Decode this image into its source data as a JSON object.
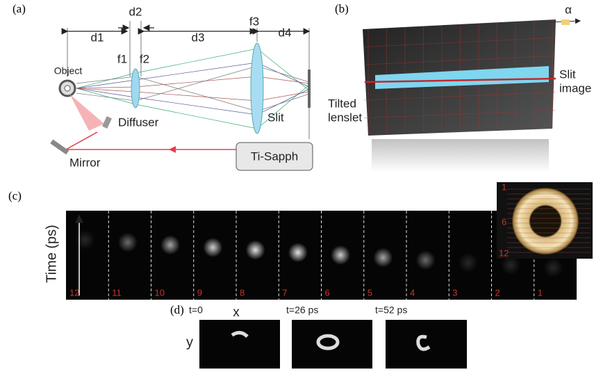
{
  "panel_a": {
    "label": "(a)",
    "dimensions": [
      "d1",
      "d2",
      "d3",
      "d4"
    ],
    "focal": [
      "f1",
      "f2",
      "f3"
    ],
    "object": "Object",
    "diffuser": "Diffuser",
    "slit": "Slit",
    "mirror": "Mirror",
    "laser": "Ti-Sapph"
  },
  "panel_b": {
    "label": "(b)",
    "angle": "α",
    "slit_image": [
      "Slit",
      "image"
    ],
    "tilted_lenslet": [
      "Tilted",
      "lenslet"
    ]
  },
  "panel_c": {
    "label": "(c)",
    "axis": "Time (ps)",
    "frame_labels": [
      "12",
      "11",
      "10",
      "9",
      "8",
      "7",
      "6",
      "5",
      "4",
      "3",
      "2",
      "1"
    ],
    "inset_labels": [
      "1",
      "6",
      "12"
    ]
  },
  "panel_d": {
    "label": "(d)",
    "x_axis": "x",
    "y_axis": "y",
    "times": [
      "t=0",
      "t=26 ps",
      "t=52 ps"
    ]
  }
}
